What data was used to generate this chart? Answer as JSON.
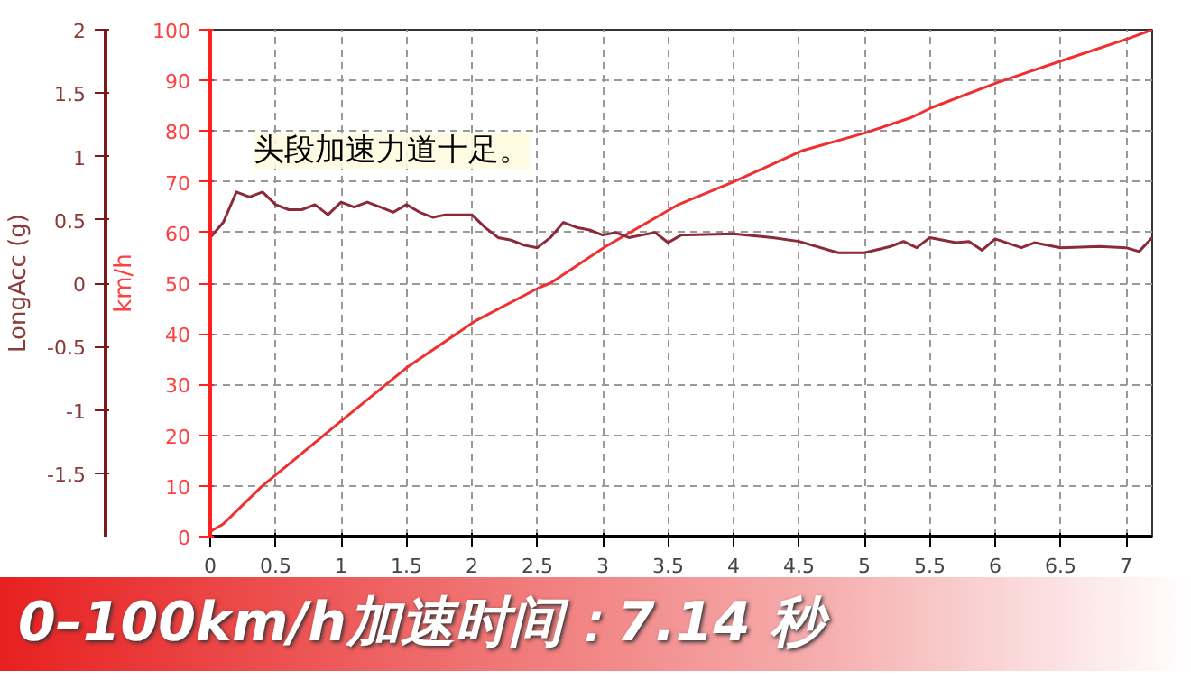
{
  "chart_data": {
    "type": "line",
    "xlim": [
      0,
      7.2
    ],
    "xticks": [
      0,
      0.5,
      1,
      1.5,
      2,
      2.5,
      3,
      3.5,
      4,
      4.5,
      5,
      5.5,
      6,
      6.5,
      7
    ],
    "ylim": [
      0,
      100
    ],
    "yticks": [
      0,
      10,
      20,
      30,
      40,
      50,
      60,
      70,
      80,
      90,
      100
    ],
    "ylabel": "km/h",
    "y2lim": [
      -2,
      2
    ],
    "y2ticks": [
      -1.5,
      -1,
      -0.5,
      0,
      0.5,
      1,
      1.5,
      2
    ],
    "y2label": "LongAcc (g)",
    "grid": true,
    "line_style": "solid",
    "marker": "none",
    "series": [
      {
        "color": "#ee3030",
        "x": [
          0,
          0.1,
          0.2,
          0.39,
          1.0,
          1.5,
          2.03,
          2.52,
          2.6,
          3.02,
          3.57,
          4.0,
          4.52,
          5.0,
          5.35,
          5.52,
          6.02,
          6.52,
          7.02,
          7.2
        ],
        "values": [
          1,
          2.5,
          5,
          9.8,
          22.8,
          33.3,
          42.6,
          49.2,
          50,
          57.2,
          65.4,
          70,
          76.1,
          79.6,
          82.6,
          84.7,
          89.6,
          94,
          98.3,
          100
        ]
      },
      {
        "color": "#8b2a3a",
        "axis": "y2",
        "x": [
          0,
          0.1,
          0.2,
          0.3,
          0.4,
          0.5,
          0.6,
          0.7,
          0.8,
          0.9,
          1.0,
          1.1,
          1.2,
          1.3,
          1.4,
          1.5,
          1.6,
          1.7,
          1.8,
          1.9,
          2.0,
          2.1,
          2.2,
          2.3,
          2.4,
          2.5,
          2.6,
          2.7,
          2.8,
          2.9,
          3.0,
          3.1,
          3.2,
          3.3,
          3.4,
          3.5,
          3.6,
          4.0,
          4.3,
          4.5,
          4.8,
          5.0,
          5.2,
          5.3,
          5.4,
          5.5,
          5.7,
          5.8,
          5.9,
          6.0,
          6.2,
          6.3,
          6.5,
          6.8,
          7.0,
          7.1,
          7.2
        ],
        "values": [
          0.36,
          0.48,
          0.72,
          0.68,
          0.72,
          0.62,
          0.58,
          0.58,
          0.62,
          0.54,
          0.64,
          0.6,
          0.64,
          0.6,
          0.56,
          0.62,
          0.56,
          0.52,
          0.54,
          0.54,
          0.54,
          0.44,
          0.36,
          0.34,
          0.3,
          0.28,
          0.36,
          0.48,
          0.44,
          0.42,
          0.38,
          0.4,
          0.36,
          0.38,
          0.4,
          0.32,
          0.38,
          0.39,
          0.36,
          0.33,
          0.24,
          0.24,
          0.29,
          0.33,
          0.28,
          0.36,
          0.32,
          0.33,
          0.26,
          0.35,
          0.28,
          0.32,
          0.28,
          0.29,
          0.28,
          0.25,
          0.36
        ]
      }
    ],
    "annotations": [
      "头段加速力道十足。",
      "0–100km/h加速时间：7.14 秒"
    ]
  }
}
